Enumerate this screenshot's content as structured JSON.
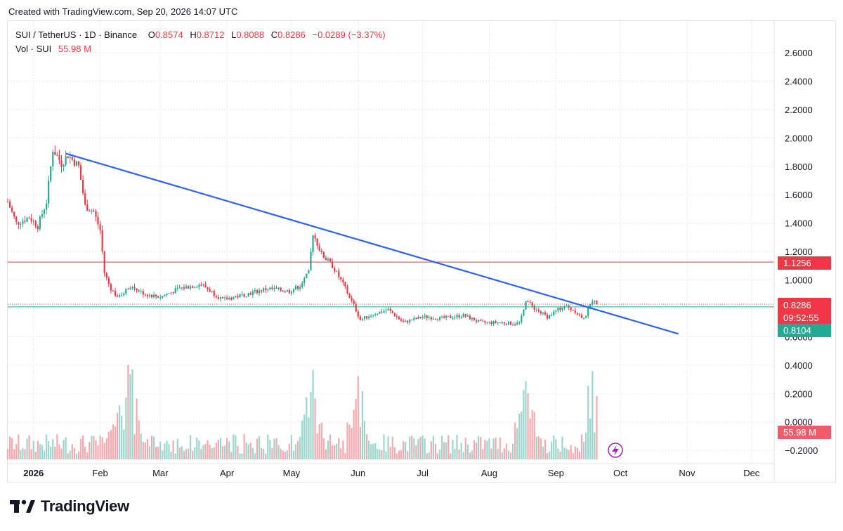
{
  "caption": "Created with TradingView.com, Sep 20, 2026 14:07 UTC",
  "legend": {
    "symbol": "SUI / TetherUS · 1D · Binance",
    "o_label": "O",
    "o_value": "0.8574",
    "h_label": "H",
    "h_value": "0.8712",
    "l_label": "L",
    "l_value": "0.8088",
    "c_label": "C",
    "c_value": "0.8286",
    "change": "−0.0289 (−3.37%)",
    "vol_label": "Vol · SUI",
    "vol_value": "55.98 M"
  },
  "brand": {
    "name": "TradingView"
  },
  "price_tags": {
    "close": "0.8286",
    "countdown": "09:52:55",
    "red_line": "1.1256",
    "green_line": "0.8104",
    "volume": "55.98 M"
  },
  "colors": {
    "up": "#22ab94",
    "down": "#f23645",
    "trendline": "#2962ff",
    "red_line": "#f23645",
    "green_line": "#22ab94"
  },
  "chart_data": {
    "type": "candlestick",
    "x_axis_labels": [
      "2026",
      "Feb",
      "Mar",
      "Apr",
      "May",
      "Jun",
      "Jul",
      "Aug",
      "Sep",
      "Oct",
      "Nov",
      "Dec"
    ],
    "y_axis_labels": [
      "2.6000",
      "2.4000",
      "2.2000",
      "2.0000",
      "1.8000",
      "1.6000",
      "1.4000",
      "1.2000",
      "1.0000",
      "0.8000",
      "0.6000",
      "0.4000",
      "0.2000",
      "0.0000",
      "−0.2000"
    ],
    "ylim": [
      -0.2,
      2.6
    ],
    "grid": true,
    "date_range": [
      "2025-12-20",
      "2026-09-20"
    ],
    "price_path": [
      {
        "date": "2025-12-20",
        "value": 1.55
      },
      {
        "date": "2025-12-24",
        "value": 1.4
      },
      {
        "date": "2025-12-30",
        "value": 1.44
      },
      {
        "date": "2026-01-03",
        "value": 1.38
      },
      {
        "date": "2026-01-07",
        "value": 1.55
      },
      {
        "date": "2026-01-10",
        "value": 1.92
      },
      {
        "date": "2026-01-14",
        "value": 1.82
      },
      {
        "date": "2026-01-17",
        "value": 1.88
      },
      {
        "date": "2026-01-22",
        "value": 1.8
      },
      {
        "date": "2026-01-25",
        "value": 1.52
      },
      {
        "date": "2026-01-29",
        "value": 1.48
      },
      {
        "date": "2026-02-01",
        "value": 1.35
      },
      {
        "date": "2026-02-03",
        "value": 1.05
      },
      {
        "date": "2026-02-06",
        "value": 0.93
      },
      {
        "date": "2026-02-10",
        "value": 0.88
      },
      {
        "date": "2026-02-15",
        "value": 0.96
      },
      {
        "date": "2026-02-22",
        "value": 0.9
      },
      {
        "date": "2026-03-01",
        "value": 0.88
      },
      {
        "date": "2026-03-10",
        "value": 0.94
      },
      {
        "date": "2026-03-20",
        "value": 0.97
      },
      {
        "date": "2026-03-30",
        "value": 0.86
      },
      {
        "date": "2026-04-10",
        "value": 0.9
      },
      {
        "date": "2026-04-20",
        "value": 0.94
      },
      {
        "date": "2026-04-30",
        "value": 0.92
      },
      {
        "date": "2026-05-05",
        "value": 0.96
      },
      {
        "date": "2026-05-09",
        "value": 1.05
      },
      {
        "date": "2026-05-11",
        "value": 1.33
      },
      {
        "date": "2026-05-15",
        "value": 1.18
      },
      {
        "date": "2026-05-20",
        "value": 1.1
      },
      {
        "date": "2026-05-25",
        "value": 0.97
      },
      {
        "date": "2026-05-30",
        "value": 0.82
      },
      {
        "date": "2026-06-02",
        "value": 0.72
      },
      {
        "date": "2026-06-08",
        "value": 0.76
      },
      {
        "date": "2026-06-15",
        "value": 0.79
      },
      {
        "date": "2026-06-22",
        "value": 0.7
      },
      {
        "date": "2026-07-01",
        "value": 0.74
      },
      {
        "date": "2026-07-10",
        "value": 0.73
      },
      {
        "date": "2026-07-20",
        "value": 0.75
      },
      {
        "date": "2026-07-28",
        "value": 0.7
      },
      {
        "date": "2026-08-05",
        "value": 0.7
      },
      {
        "date": "2026-08-15",
        "value": 0.69
      },
      {
        "date": "2026-08-18",
        "value": 0.86
      },
      {
        "date": "2026-08-22",
        "value": 0.8
      },
      {
        "date": "2026-08-28",
        "value": 0.74
      },
      {
        "date": "2026-09-05",
        "value": 0.82
      },
      {
        "date": "2026-09-10",
        "value": 0.78
      },
      {
        "date": "2026-09-14",
        "value": 0.72
      },
      {
        "date": "2026-09-18",
        "value": 0.86
      },
      {
        "date": "2026-09-20",
        "value": 0.8286
      }
    ],
    "horizontal_lines": [
      {
        "value": 1.1256,
        "color": "#f23645"
      },
      {
        "value": 0.8104,
        "color": "#22ab94"
      }
    ],
    "trendline": {
      "from": {
        "date": "2026-01-16",
        "value": 1.89
      },
      "to": {
        "date": "2026-10-28",
        "value": 0.62
      }
    },
    "last_close": 0.8286,
    "volume_panel": {
      "label": "Vol · SUI",
      "last": "55.98 M",
      "spikes_on": [
        "2026-02-10",
        "2026-02-15",
        "2026-05-11",
        "2026-06-01",
        "2026-08-18",
        "2026-09-18"
      ]
    }
  }
}
